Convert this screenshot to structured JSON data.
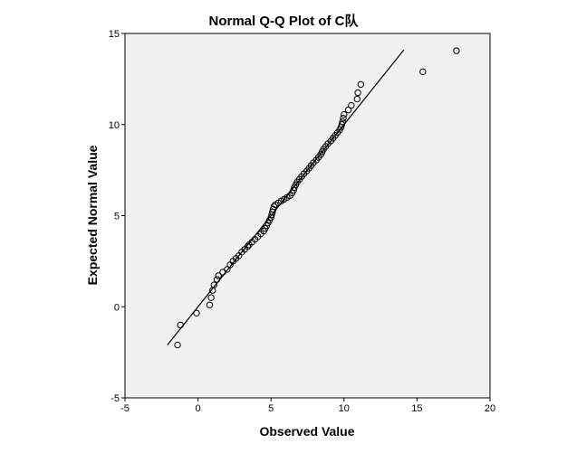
{
  "chart_data": {
    "type": "scatter",
    "title": "Normal Q-Q Plot of C队",
    "xlabel": "Observed Value",
    "ylabel": "Expected Normal Value",
    "xlim": [
      -5,
      20
    ],
    "ylim": [
      -5,
      15
    ],
    "xticks": [
      "-5",
      "0",
      "5",
      "10",
      "15",
      "20"
    ],
    "yticks": [
      "-5",
      "0",
      "5",
      "10",
      "15"
    ],
    "grid": false,
    "plot_background": "#f0f0f0",
    "reference_line": {
      "x": [
        -2.1,
        14.1
      ],
      "y": [
        -2.1,
        14.1
      ]
    },
    "points": [
      [
        -1.4,
        -2.1
      ],
      [
        -1.2,
        -1.0
      ],
      [
        -0.1,
        -0.35
      ],
      [
        0.8,
        0.1
      ],
      [
        0.9,
        0.5
      ],
      [
        1.0,
        0.9
      ],
      [
        1.1,
        1.2
      ],
      [
        1.3,
        1.5
      ],
      [
        1.4,
        1.7
      ],
      [
        1.7,
        1.9
      ],
      [
        2.0,
        2.05
      ],
      [
        2.2,
        2.3
      ],
      [
        2.4,
        2.5
      ],
      [
        2.6,
        2.65
      ],
      [
        2.8,
        2.8
      ],
      [
        3.0,
        3.0
      ],
      [
        3.2,
        3.15
      ],
      [
        3.4,
        3.3
      ],
      [
        3.5,
        3.4
      ],
      [
        3.7,
        3.55
      ],
      [
        3.9,
        3.7
      ],
      [
        4.1,
        3.85
      ],
      [
        4.3,
        4.0
      ],
      [
        4.5,
        4.15
      ],
      [
        4.6,
        4.3
      ],
      [
        4.7,
        4.45
      ],
      [
        4.8,
        4.6
      ],
      [
        4.9,
        4.75
      ],
      [
        5.0,
        4.9
      ],
      [
        5.05,
        5.05
      ],
      [
        5.1,
        5.2
      ],
      [
        5.15,
        5.35
      ],
      [
        5.2,
        5.5
      ],
      [
        5.3,
        5.6
      ],
      [
        5.5,
        5.7
      ],
      [
        5.7,
        5.8
      ],
      [
        5.9,
        5.9
      ],
      [
        6.1,
        6.0
      ],
      [
        6.3,
        6.1
      ],
      [
        6.45,
        6.25
      ],
      [
        6.55,
        6.4
      ],
      [
        6.6,
        6.55
      ],
      [
        6.7,
        6.7
      ],
      [
        6.8,
        6.85
      ],
      [
        6.95,
        7.0
      ],
      [
        7.1,
        7.15
      ],
      [
        7.25,
        7.3
      ],
      [
        7.45,
        7.45
      ],
      [
        7.6,
        7.6
      ],
      [
        7.75,
        7.75
      ],
      [
        7.9,
        7.9
      ],
      [
        8.1,
        8.05
      ],
      [
        8.25,
        8.2
      ],
      [
        8.4,
        8.35
      ],
      [
        8.5,
        8.5
      ],
      [
        8.6,
        8.65
      ],
      [
        8.75,
        8.8
      ],
      [
        8.9,
        8.95
      ],
      [
        9.1,
        9.1
      ],
      [
        9.25,
        9.25
      ],
      [
        9.4,
        9.4
      ],
      [
        9.55,
        9.55
      ],
      [
        9.7,
        9.7
      ],
      [
        9.8,
        9.85
      ],
      [
        9.85,
        10.0
      ],
      [
        9.9,
        10.15
      ],
      [
        9.95,
        10.35
      ],
      [
        10.0,
        10.55
      ],
      [
        10.3,
        10.8
      ],
      [
        10.5,
        11.05
      ],
      [
        10.9,
        11.4
      ],
      [
        10.95,
        11.75
      ],
      [
        11.15,
        12.2
      ],
      [
        15.4,
        12.9
      ],
      [
        17.7,
        14.05
      ]
    ]
  }
}
